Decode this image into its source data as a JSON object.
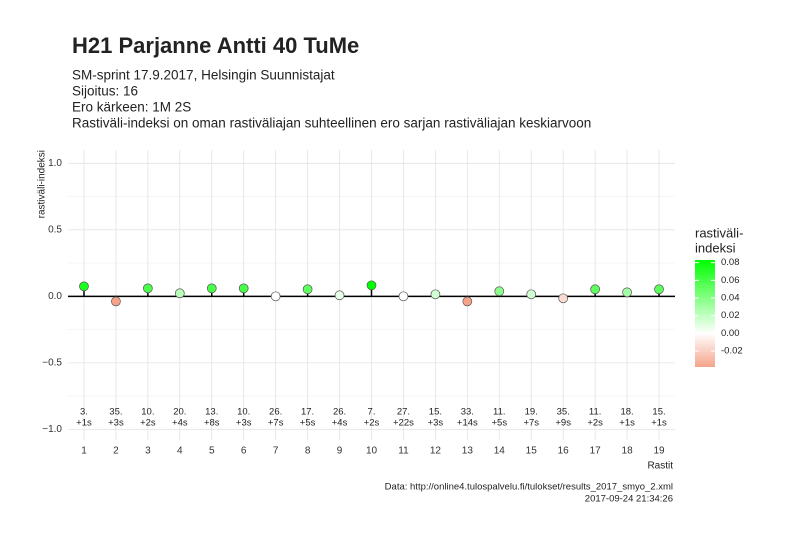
{
  "chart_data": {
    "type": "lollipop",
    "title": "H21 Parjanne Antti 40 TuMe",
    "subtitle": [
      "SM-sprint 17.9.2017, Helsingin Suunnistajat",
      "Sijoitus: 16",
      "Ero kärkeen: 1M 2S",
      "Rastiväli-indeksi on oman rastiväliajan suhteellinen ero sarjan rastiväliajan keskiarvoon"
    ],
    "y_label": "rastiväli-indeksi",
    "x_label": "Rastit",
    "caption": [
      "Data: http://online4.tulospalvelu.fi/tulokset/results_2017_smyo_2.xml",
      "2017-09-24 21:34:26"
    ],
    "categories": [
      "1",
      "2",
      "3",
      "4",
      "5",
      "6",
      "7",
      "8",
      "9",
      "10",
      "11",
      "12",
      "13",
      "14",
      "15",
      "16",
      "17",
      "18",
      "19"
    ],
    "values": [
      0.075,
      -0.038,
      0.06,
      0.023,
      0.06,
      0.06,
      0.0,
      0.053,
      0.008,
      0.083,
      0.0,
      0.015,
      -0.038,
      0.038,
      0.015,
      -0.015,
      0.053,
      0.03,
      0.053
    ],
    "annotations": [
      [
        "3.",
        "+1s"
      ],
      [
        "35.",
        "+3s"
      ],
      [
        "10.",
        "+2s"
      ],
      [
        "20.",
        "+4s"
      ],
      [
        "13.",
        "+8s"
      ],
      [
        "10.",
        "+3s"
      ],
      [
        "26.",
        "+7s"
      ],
      [
        "17.",
        "+5s"
      ],
      [
        "26.",
        "+4s"
      ],
      [
        "7.",
        "+2s"
      ],
      [
        "27.",
        "+22s"
      ],
      [
        "15.",
        "+3s"
      ],
      [
        "33.",
        "+14s"
      ],
      [
        "11.",
        "+5s"
      ],
      [
        "19.",
        "+7s"
      ],
      [
        "35.",
        "+9s"
      ],
      [
        "11.",
        "+2s"
      ],
      [
        "18.",
        "+1s"
      ],
      [
        "15.",
        "+1s"
      ]
    ],
    "ylim": [
      -1.08,
      1.1
    ],
    "yticks": [
      {
        "value": -1,
        "label": "−1.0"
      },
      {
        "value": -0.5,
        "label": "−0.5"
      },
      {
        "value": 0,
        "label": "0.0"
      },
      {
        "value": 0.5,
        "label": "0.5"
      },
      {
        "value": 1,
        "label": "1.0"
      }
    ],
    "grid": true,
    "legend_title": [
      "rastiväli-",
      "indeksi"
    ],
    "color_scale": {
      "low": "#f6a38a",
      "mid": "#ffffff",
      "high": "#00ff00",
      "limits": [
        -0.038,
        0.083
      ],
      "ticks": [
        -0.02,
        {
          "value": 0,
          "label": "0.00"
        },
        0.02,
        0.04,
        0.06,
        0.08
      ]
    }
  }
}
